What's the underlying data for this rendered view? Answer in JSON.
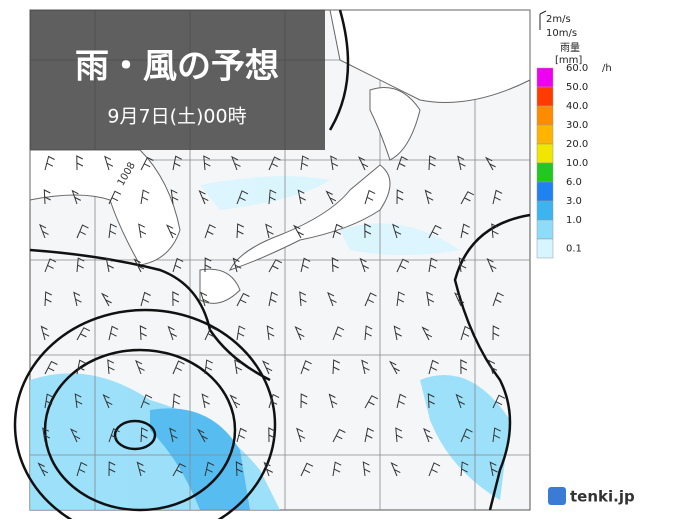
{
  "header": {
    "title": "雨・風の予想",
    "subtitle": "9月7日(土)00時"
  },
  "isobar_label": "1008",
  "legend": {
    "wind_small": "2m/s",
    "wind_large": "10m/s",
    "rain_title": "雨量",
    "rain_unit": "[mm]",
    "per_hour": "/h",
    "items": [
      {
        "label": "60.0",
        "color": "#f000f0"
      },
      {
        "label": "50.0",
        "color": "#ff3c00"
      },
      {
        "label": "40.0",
        "color": "#ff8c00"
      },
      {
        "label": "30.0",
        "color": "#ffb400"
      },
      {
        "label": "20.0",
        "color": "#f0e600"
      },
      {
        "label": "10.0",
        "color": "#22c822"
      },
      {
        "label": "6.0",
        "color": "#1e82f0"
      },
      {
        "label": "3.0",
        "color": "#3cb4f0"
      },
      {
        "label": "1.0",
        "color": "#8cdcfa"
      },
      {
        "label": "0.1",
        "color": "#d7f5ff"
      }
    ]
  },
  "brand": "tenki.jp"
}
